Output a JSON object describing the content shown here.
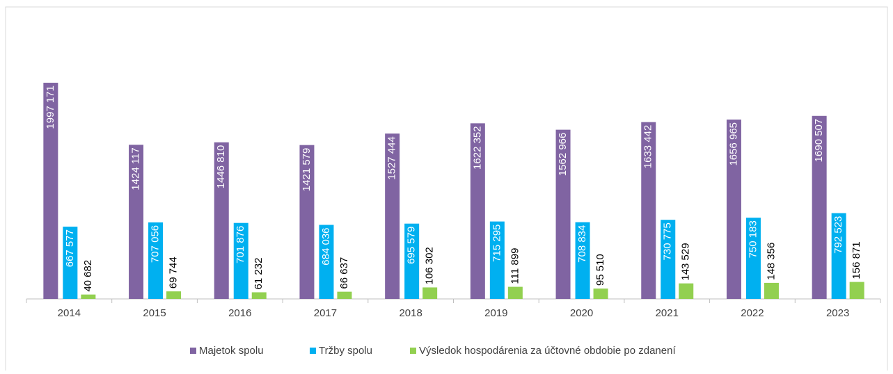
{
  "chart_data": {
    "type": "bar",
    "categories": [
      "2014",
      "2015",
      "2016",
      "2017",
      "2018",
      "2019",
      "2020",
      "2021",
      "2022",
      "2023"
    ],
    "series": [
      {
        "name": "Majetok spolu",
        "color": "#8064a2",
        "values": [
          1997171,
          1424117,
          1446810,
          1421579,
          1527444,
          1622352,
          1562966,
          1633442,
          1656965,
          1690507
        ],
        "value_labels": [
          "1997 171",
          "1424 117",
          "1446 810",
          "1421 579",
          "1527 444",
          "1622 352",
          "1562 966",
          "1633 442",
          "1656 965",
          "1690 507"
        ]
      },
      {
        "name": "Tržby spolu",
        "color": "#00b0f0",
        "values": [
          667577,
          707056,
          701876,
          684036,
          695579,
          715295,
          708834,
          730775,
          750183,
          792523
        ],
        "value_labels": [
          "667 577",
          "707 056",
          "701 876",
          "684 036",
          "695 579",
          "715 295",
          "708 834",
          "730 775",
          "750 183",
          "792 523"
        ]
      },
      {
        "name": "Výsledok hospodárenia za účtovné obdobie po zdanení",
        "color": "#92d050",
        "values": [
          40682,
          69744,
          61232,
          66637,
          106302,
          111899,
          95510,
          143529,
          148356,
          156871
        ],
        "value_labels": [
          "40 682",
          "69 744",
          "61 232",
          "66 637",
          "106 302",
          "111 899",
          "95 510",
          "143 529",
          "148 356",
          "156 871"
        ]
      }
    ],
    "legend": "bottom"
  }
}
